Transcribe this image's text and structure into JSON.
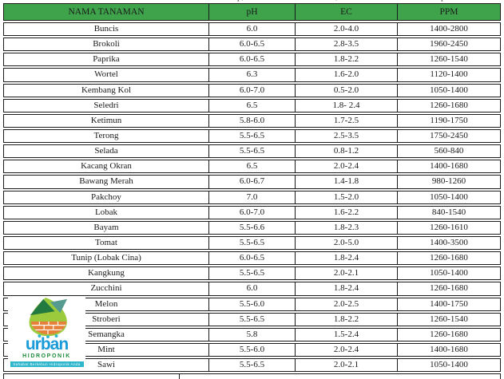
{
  "page": {
    "background": "#ffffff",
    "border_color": "#1a1a1a"
  },
  "top_cropped_line": {
    "fragments": {
      "f1": "p,",
      "f2": ",",
      "f3": "p"
    }
  },
  "table": {
    "header_bg": "#3EA34B",
    "headers": [
      "NAMA TANAMAN",
      "pH",
      "EC",
      "PPM"
    ],
    "rows": [
      {
        "name": "Buncis",
        "ph": "6.0",
        "ec": "2.0-4.0",
        "ppm": "1400-2800"
      },
      {
        "name": "Brokoli",
        "ph": "6.0-6.5",
        "ec": "2.8-3.5",
        "ppm": "1960-2450"
      },
      {
        "name": "Paprika",
        "ph": "6.0-6.5",
        "ec": "1.8-2.2",
        "ppm": "1260-1540"
      },
      {
        "name": "Wortel",
        "ph": "6.3",
        "ec": "1.6-2.0",
        "ppm": "1120-1400"
      },
      {
        "name": "Kembang Kol",
        "ph": "6.0-7.0",
        "ec": "0.5-2.0",
        "ppm": "1050-1400"
      },
      {
        "name": "Seledri",
        "ph": "6.5",
        "ec": "1.8- 2.4",
        "ppm": "1260-1680"
      },
      {
        "name": "Ketimun",
        "ph": "5.8-6.0",
        "ec": "1.7-2.5",
        "ppm": "1190-1750"
      },
      {
        "name": "Terong",
        "ph": "5.5-6.5",
        "ec": "2.5-3.5",
        "ppm": "1750-2450"
      },
      {
        "name": "Selada",
        "ph": "5.5-6.5",
        "ec": "0.8-1.2",
        "ppm": "560-840"
      },
      {
        "name": "Kacang Okran",
        "ph": "6.5",
        "ec": "2.0-2.4",
        "ppm": "1400-1680"
      },
      {
        "name": "Bawang Merah",
        "ph": "6.0-6.7",
        "ec": "1.4-1.8",
        "ppm": "980-1260"
      },
      {
        "name": "Pakchoy",
        "ph": "7.0",
        "ec": "1.5-2.0",
        "ppm": "1050-1400"
      },
      {
        "name": "Lobak",
        "ph": "6.0-7.0",
        "ec": "1.6-2.2",
        "ppm": "840-1540"
      },
      {
        "name": "Bayam",
        "ph": "5.5-6.6",
        "ec": "1.8-2.3",
        "ppm": "1260-1610"
      },
      {
        "name": "Tomat",
        "ph": "5.5-6.5",
        "ec": "2.0-5.0",
        "ppm": "1400-3500"
      },
      {
        "name": "Tunip (Lobak Cina)",
        "ph": "6.0-6.5",
        "ec": "1.8-2.4",
        "ppm": "1260-1680"
      },
      {
        "name": "Kangkung",
        "ph": "5.5-6.5",
        "ec": "2.0-2.1",
        "ppm": "1050-1400"
      },
      {
        "name": "Zucchini",
        "ph": "6.0",
        "ec": "1.8-2.4",
        "ppm": "1260-1680"
      },
      {
        "name": "Melon",
        "ph": "5.5-6.0",
        "ec": "2.0-2.5",
        "ppm": "1400-1750"
      },
      {
        "name": "Stroberi",
        "ph": "5.5-6.5",
        "ec": "1.8-2.2",
        "ppm": "1260-1540"
      },
      {
        "name": "Semangka",
        "ph": "5.8",
        "ec": "1.5-2.4",
        "ppm": "1260-1680"
      },
      {
        "name": "Mint",
        "ph": "5.5-6.0",
        "ec": "2.0-2.4",
        "ppm": "1400-1680"
      },
      {
        "name": "Sawi",
        "ph": "5.5-6.5",
        "ec": "2.0-2.1",
        "ppm": "1050-1400"
      }
    ]
  },
  "logo": {
    "wordmark": "urban",
    "subtitle": "HIDROPONIK",
    "tagline": "Sahabat Berkebun Hidroponik Anda",
    "colors": {
      "wordmark_blue": "#1B9BD7",
      "subtitle_green": "#1E8B3C",
      "banner_teal": "#2EB6CC",
      "leaf_green": "#9BCB3D",
      "mountain_dark_green": "#237A40",
      "mountain_teal": "#559B8F",
      "soil_orange": "#E5813B"
    }
  }
}
